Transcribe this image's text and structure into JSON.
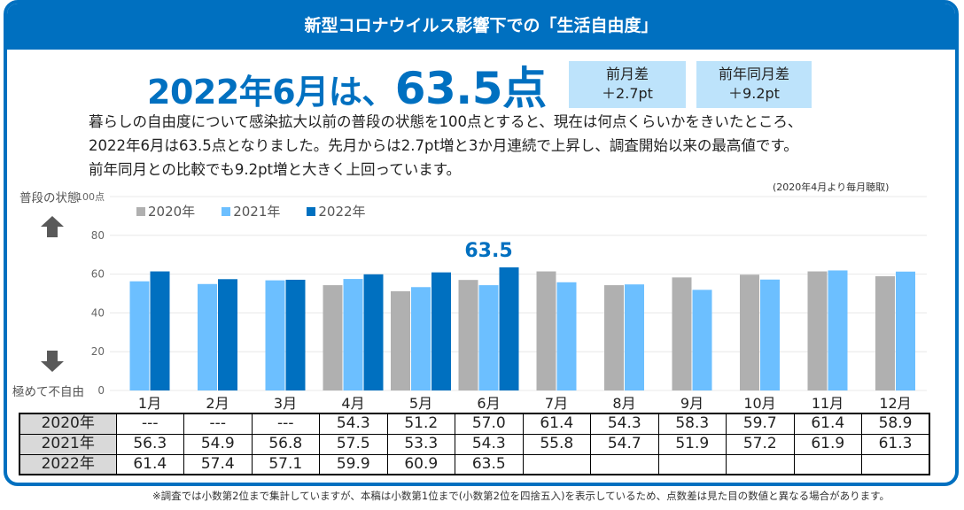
{
  "header": {
    "title": "新型コロナウイルス影響下での「生活自由度」"
  },
  "headline": {
    "prefix": "2022年6月は、",
    "score": "63.5点"
  },
  "diffs": [
    {
      "label": "前月差",
      "value": "＋2.7pt"
    },
    {
      "label": "前年同月差",
      "value": "＋9.2pt"
    }
  ],
  "summary": {
    "lines": [
      "暮らしの自由度について感染拡大以前の普段の状態を100点とすると、現在は何点くらいかをきいたところ、",
      "2022年6月は63.5点となりました。先月からは2.7pt増と3か月連続で上昇し、調査開始以来の最高値です。",
      "前年同月との比較でも9.2pt増と大きく上回っています。"
    ]
  },
  "survey_note": "(2020年4月より毎月聴取)",
  "axis_labels": {
    "top": "普段の状態",
    "bottom": "極めて不自由",
    "top_icon": "arrow-up-icon",
    "bottom_icon": "arrow-down-icon"
  },
  "colors": {
    "brand": "#0070c0",
    "s2020": "#b0b0b0",
    "s2021": "#6cbfff",
    "s2022": "#0070c0",
    "diffbox": "#bde3fb"
  },
  "chart_data": {
    "type": "bar",
    "title": "",
    "xlabel": "",
    "ylabel": "",
    "ylim": [
      0,
      100
    ],
    "yticks": [
      "0",
      "20",
      "40",
      "60",
      "80",
      "100点"
    ],
    "ytick_values": [
      0,
      20,
      40,
      60,
      80,
      100
    ],
    "grid": true,
    "legend_position": "top-left",
    "categories": [
      "1月",
      "2月",
      "3月",
      "4月",
      "5月",
      "6月",
      "7月",
      "8月",
      "9月",
      "10月",
      "11月",
      "12月"
    ],
    "series": [
      {
        "name": "2020年",
        "values": [
          null,
          null,
          null,
          54.3,
          51.2,
          57.0,
          61.4,
          54.3,
          58.3,
          59.7,
          61.4,
          58.9
        ]
      },
      {
        "name": "2021年",
        "values": [
          56.3,
          54.9,
          56.8,
          57.5,
          53.3,
          54.3,
          55.8,
          54.7,
          51.9,
          57.2,
          61.9,
          61.3
        ]
      },
      {
        "name": "2022年",
        "values": [
          61.4,
          57.4,
          57.1,
          59.9,
          60.9,
          63.5,
          null,
          null,
          null,
          null,
          null,
          null
        ]
      }
    ],
    "annotation": {
      "text": "63.5",
      "category": "6月",
      "series": "2022年"
    }
  },
  "table": {
    "rows": [
      {
        "label": "2020年",
        "cells": [
          "---",
          "---",
          "---",
          "54.3",
          "51.2",
          "57.0",
          "61.4",
          "54.3",
          "58.3",
          "59.7",
          "61.4",
          "58.9"
        ]
      },
      {
        "label": "2021年",
        "cells": [
          "56.3",
          "54.9",
          "56.8",
          "57.5",
          "53.3",
          "54.3",
          "55.8",
          "54.7",
          "51.9",
          "57.2",
          "61.9",
          "61.3"
        ]
      },
      {
        "label": "2022年",
        "cells": [
          "61.4",
          "57.4",
          "57.1",
          "59.9",
          "60.9",
          "63.5",
          "",
          "",
          "",
          "",
          "",
          ""
        ]
      }
    ]
  },
  "footnote": "※調査では小数第2位まで集計していますが、本稿は小数第1位まで(小数第2位を四捨五入)を表示しているため、点数差は見た目の数値と異なる場合があります。"
}
